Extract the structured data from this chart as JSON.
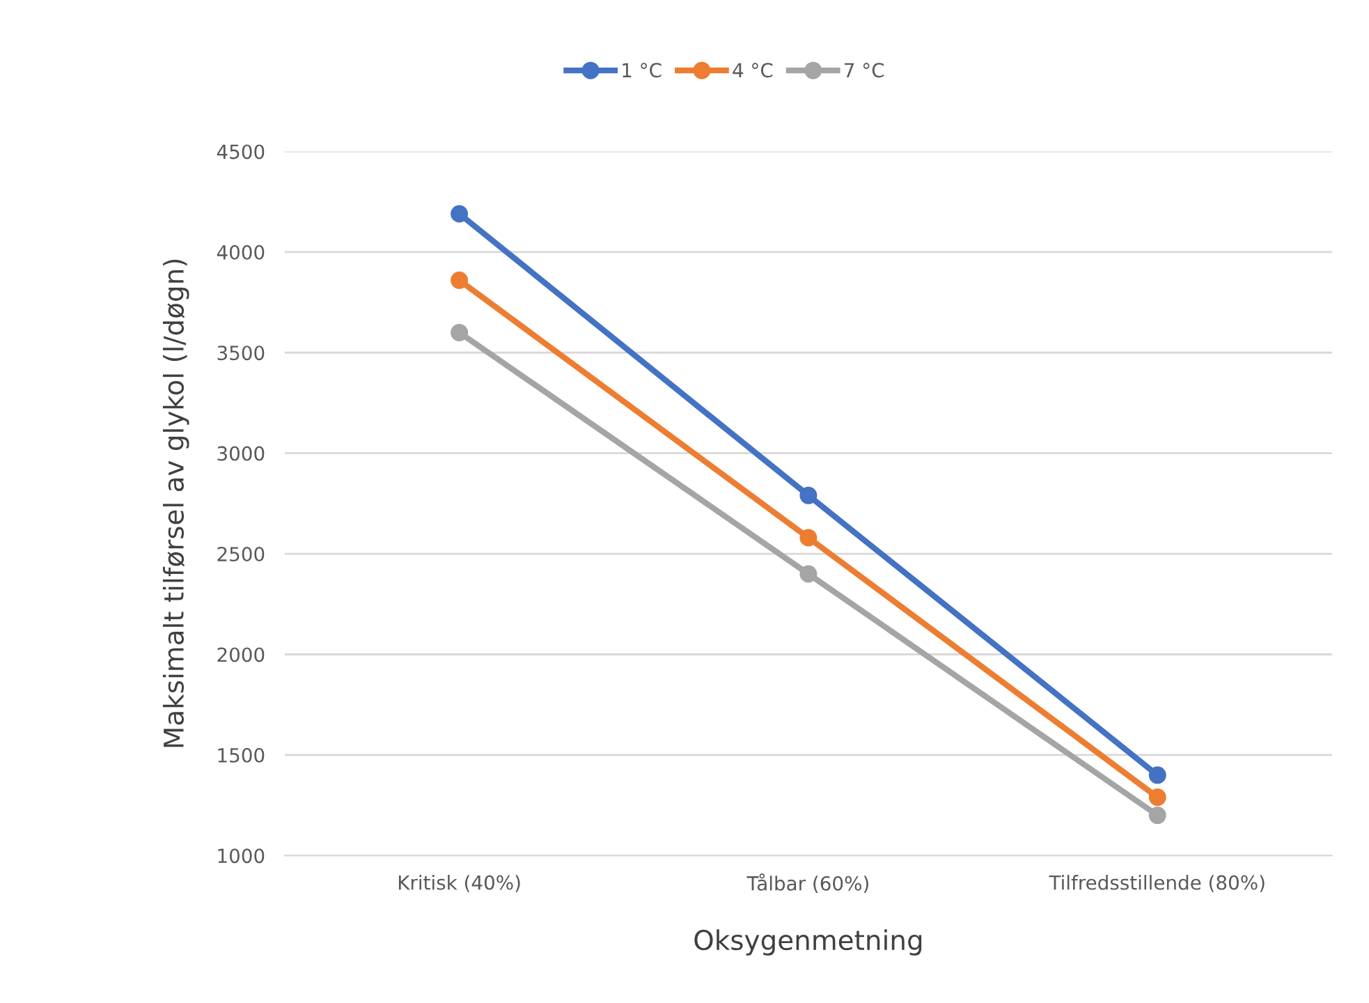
{
  "chart_data": {
    "type": "line",
    "xlabel": "Oksygenmetning",
    "ylabel": "Maksimalt tilførsel av glykol (l/døgn)",
    "categories": [
      "Kritisk (40%)",
      "Tålbar (60%)",
      "Tilfredsstillende (80%)"
    ],
    "series": [
      {
        "name": "1 °C",
        "color": "#4472c4",
        "values": [
          4190,
          2790,
          1400
        ]
      },
      {
        "name": "4 °C",
        "color": "#ed7d31",
        "values": [
          3860,
          2580,
          1290
        ]
      },
      {
        "name": "7 °C",
        "color": "#a5a5a5",
        "values": [
          3600,
          2400,
          1200
        ]
      }
    ],
    "ylim": [
      1000,
      4500
    ],
    "yticks": [
      1000,
      1500,
      2000,
      2500,
      3000,
      3500,
      4000,
      4500
    ],
    "grid": "y",
    "legend": "top",
    "marker": "circle",
    "line_style": "solid"
  }
}
